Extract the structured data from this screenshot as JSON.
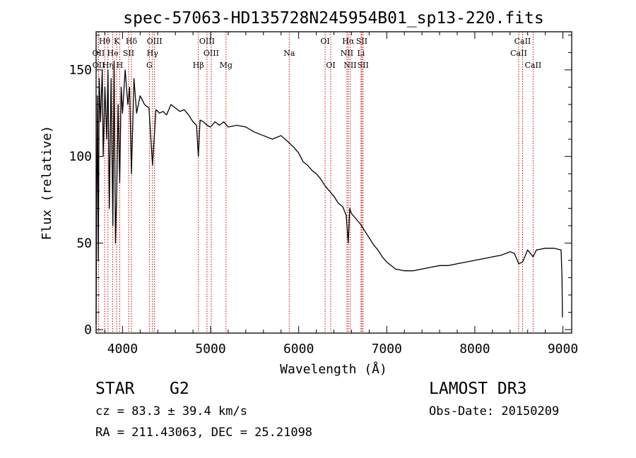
{
  "chart_data": {
    "type": "line",
    "title": "spec-57063-HD135728N245954B01_sp13-220.fits",
    "xlabel": "Wavelength (Å)",
    "ylabel": "Flux (relative)",
    "xlim": [
      3700,
      9100
    ],
    "ylim": [
      -2,
      172
    ],
    "x_ticks": [
      4000,
      5000,
      6000,
      7000,
      8000,
      9000
    ],
    "y_ticks": [
      0,
      50,
      100,
      150
    ],
    "series": [
      {
        "name": "spectrum",
        "color": "#000000",
        "x": [
          3700,
          3705,
          3715,
          3725,
          3735,
          3750,
          3770,
          3780,
          3800,
          3820,
          3835,
          3850,
          3870,
          3890,
          3905,
          3920,
          3934,
          3950,
          3968,
          3985,
          4000,
          4030,
          4060,
          4080,
          4101,
          4130,
          4160,
          4200,
          4250,
          4300,
          4340,
          4380,
          4420,
          4460,
          4500,
          4550,
          4600,
          4650,
          4700,
          4750,
          4800,
          4840,
          4861,
          4880,
          4920,
          4960,
          5000,
          5050,
          5100,
          5150,
          5200,
          5300,
          5400,
          5500,
          5600,
          5700,
          5800,
          5890,
          5950,
          6000,
          6050,
          6100,
          6150,
          6200,
          6250,
          6300,
          6350,
          6400,
          6450,
          6500,
          6540,
          6563,
          6580,
          6600,
          6650,
          6700,
          6750,
          6800,
          6850,
          6900,
          6950,
          7000,
          7050,
          7100,
          7200,
          7300,
          7400,
          7500,
          7600,
          7700,
          7800,
          7900,
          8000,
          8100,
          8200,
          8300,
          8400,
          8450,
          8498,
          8542,
          8600,
          8662,
          8700,
          8800,
          8900,
          8980,
          8990,
          8995
        ],
        "y": [
          3,
          60,
          135,
          40,
          145,
          120,
          150,
          100,
          140,
          110,
          150,
          70,
          145,
          60,
          155,
          50,
          80,
          130,
          85,
          140,
          125,
          150,
          130,
          140,
          90,
          145,
          125,
          135,
          130,
          128,
          95,
          127,
          125,
          126,
          124,
          130,
          128,
          126,
          127,
          124,
          120,
          118,
          100,
          121,
          120,
          118,
          117,
          120,
          118,
          120,
          117,
          118,
          117,
          114,
          112,
          110,
          112,
          108,
          105,
          102,
          97,
          95,
          92,
          90,
          87,
          83,
          80,
          77,
          73,
          71,
          66,
          50,
          70,
          67,
          64,
          61,
          57,
          53,
          49,
          46,
          42,
          39,
          37,
          35,
          34,
          34,
          35,
          36,
          37,
          37,
          38,
          39,
          40,
          41,
          42,
          43,
          45,
          44,
          38,
          39,
          46,
          42,
          46,
          47,
          47,
          46,
          30,
          7
        ]
      }
    ],
    "line_markers": [
      {
        "label": "Hθ",
        "wavelength": 3797,
        "row": 1
      },
      {
        "label": "OII",
        "wavelength": 3727,
        "row": 2
      },
      {
        "label": "OII",
        "wavelength": 3729,
        "row": 3
      },
      {
        "label": "Hη",
        "wavelength": 3835,
        "row": 3
      },
      {
        "label": "K",
        "wavelength": 3934,
        "row": 1
      },
      {
        "label": "He",
        "wavelength": 3889,
        "row": 2
      },
      {
        "label": "H",
        "wavelength": 3968,
        "row": 3
      },
      {
        "label": "Hδ",
        "wavelength": 4101,
        "row": 1
      },
      {
        "label": "SII",
        "wavelength": 4069,
        "row": 2
      },
      {
        "label": "OIII",
        "wavelength": 4363,
        "row": 1
      },
      {
        "label": "Hγ",
        "wavelength": 4340,
        "row": 2
      },
      {
        "label": "G",
        "wavelength": 4305,
        "row": 3
      },
      {
        "label": "OIII",
        "wavelength": 4959,
        "row": 1
      },
      {
        "label": "OIII",
        "wavelength": 5007,
        "row": 2
      },
      {
        "label": "Hβ",
        "wavelength": 4861,
        "row": 3
      },
      {
        "label": "Mg",
        "wavelength": 5175,
        "row": 3
      },
      {
        "label": "Na",
        "wavelength": 5893,
        "row": 2
      },
      {
        "label": "OI",
        "wavelength": 6300,
        "row": 1
      },
      {
        "label": "OI",
        "wavelength": 6364,
        "row": 3
      },
      {
        "label": "Hα",
        "wavelength": 6563,
        "row": 1
      },
      {
        "label": "NII",
        "wavelength": 6548,
        "row": 2
      },
      {
        "label": "NII",
        "wavelength": 6584,
        "row": 3
      },
      {
        "label": "SII",
        "wavelength": 6717,
        "row": 1
      },
      {
        "label": "Li",
        "wavelength": 6708,
        "row": 2
      },
      {
        "label": "SII",
        "wavelength": 6731,
        "row": 3
      },
      {
        "label": "CaII",
        "wavelength": 8542,
        "row": 1
      },
      {
        "label": "CaII",
        "wavelength": 8498,
        "row": 2
      },
      {
        "label": "CaII",
        "wavelength": 8662,
        "row": 3
      }
    ],
    "marker_color": "#cc0000"
  },
  "info": {
    "object_class": "STAR",
    "subclass": "G2",
    "survey": "LAMOST DR3",
    "cz": "cz = 83.3 ± 39.4 km/s",
    "obs_date": "Obs-Date: 20150209",
    "coords": "RA = 211.43063, DEC =  25.21098"
  }
}
